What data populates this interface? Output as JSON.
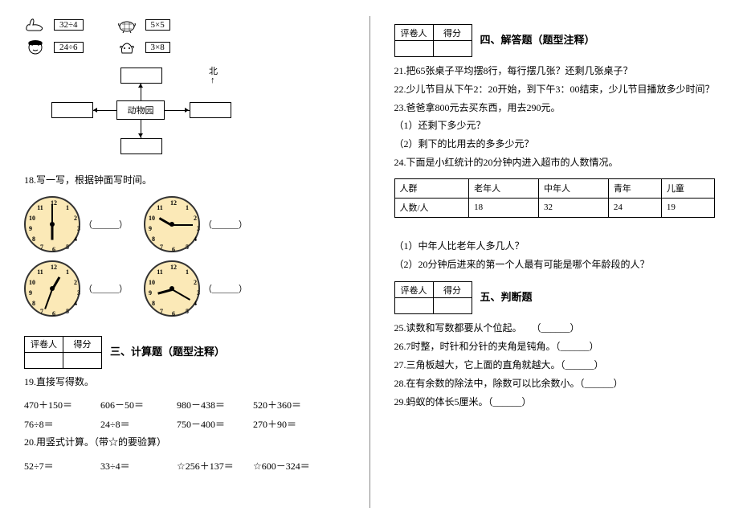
{
  "left": {
    "animals": {
      "r1a": "32÷4",
      "r1b": "5×5",
      "r2a": "24÷6",
      "r2b": "3×8"
    },
    "zoo": {
      "center": "动物园",
      "north": "北",
      "arrow": "↑"
    },
    "q18": "18.写一写，根据钟面写时间。",
    "clock_blank": "（______）",
    "clocks": [
      {
        "hour_deg": 180,
        "min_deg": 0
      },
      {
        "hour_deg": 300,
        "min_deg": 90
      },
      {
        "hour_deg": 30,
        "min_deg": 200
      },
      {
        "hour_deg": 255,
        "min_deg": 120
      }
    ],
    "score_header": {
      "a": "评卷人",
      "b": "得分"
    },
    "section3": "三、计算题（题型注释）",
    "q19": "19.直接写得数。",
    "calc1": [
      "470＋150＝",
      "606－50＝",
      "980－438＝",
      "520＋360＝"
    ],
    "calc2": [
      "76÷8＝",
      "24÷8＝",
      "750－400＝",
      "270＋90＝"
    ],
    "q20": "20.用竖式计算。（带☆的要验算）",
    "calc3": [
      "52÷7＝",
      "33÷4＝",
      "☆256＋137＝",
      "☆600－324＝"
    ]
  },
  "right": {
    "score_header": {
      "a": "评卷人",
      "b": "得分"
    },
    "section4": "四、解答题（题型注释）",
    "q21": "21.把65张桌子平均摆8行，每行摆几张？还剩几张桌子？",
    "q22": "22.少儿节目从下午2：20开始，到下午3：00结束，少儿节目播放多少时间？",
    "q23": "23.爸爸拿800元去买东西，用去290元。",
    "q23a": "（1）还剩下多少元？",
    "q23b": "（2）剩下的比用去的多多少元？",
    "q24": "24.下面是小红统计的20分钟内进入超市的人数情况。",
    "table": {
      "head": [
        "人群",
        "老年人",
        "中年人",
        "青年",
        "儿童"
      ],
      "row": [
        "人数/人",
        "18",
        "32",
        "24",
        "19"
      ]
    },
    "q24a": "（1）中年人比老年人多几人？",
    "q24b": "（2）20分钟后进来的第一个人最有可能是哪个年龄段的人？",
    "section5": "五、判断题",
    "q25": "25.读数和写数都要从个位起。　　（______）",
    "q26": "26.7时整，时针和分针的夹角是钝角。（______）",
    "q27": "27.三角板越大，它上面的直角就越大。（______）",
    "q28": "28.在有余数的除法中，除数可以比余数小。（______）",
    "q29": "29.蚂蚁的体长5厘米。（______）"
  }
}
